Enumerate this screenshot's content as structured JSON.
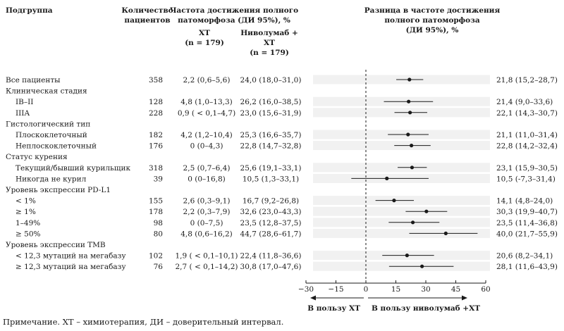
{
  "headers": {
    "subgroup": "Подгруппа",
    "patients": [
      "Количество",
      "пациентов"
    ],
    "pcr_rate": [
      "Частота достижения полного",
      "патоморфоза (ДИ 95%), %"
    ],
    "arm_chemo": [
      "ХТ",
      "(n = 179)"
    ],
    "arm_nivo": [
      "Ниволумаб +",
      "ХТ",
      "(n = 179)"
    ],
    "difference": [
      "Разница в частоте достижения",
      "полного патоморфоза",
      "(ДИ 95%), %"
    ]
  },
  "rows": [
    {
      "label": "Все пациенты",
      "indent": false,
      "n": "358",
      "chemo": "2,2 (0,6–5,6)",
      "nivo": "24,0 (18,0–31,0)",
      "diff": "21,8 (15,2–28,7)"
    },
    {
      "label": "Клиническая стадия",
      "indent": false
    },
    {
      "label": "IB–II",
      "indent": true,
      "n": "128",
      "chemo": "4,8 (1,0–13,3)",
      "nivo": "26,2 (16,0–38,5)",
      "diff": "21,4 (9,0–33,6)"
    },
    {
      "label": "IIIA",
      "indent": true,
      "n": "228",
      "chemo": "0,9 ( < 0,1–4,7)",
      "nivo": "23,0 (15,6–31,9)",
      "diff": "22,1 (14,3–30,7)"
    },
    {
      "label": "Гистологический тип",
      "indent": false
    },
    {
      "label": "Плоскоклеточный",
      "indent": true,
      "n": "182",
      "chemo": "4,2 (1,2–10,4)",
      "nivo": "25,3 (16,6–35,7)",
      "diff": "21,1 (11,0–31,4)"
    },
    {
      "label": "Неплоскоклеточный",
      "indent": true,
      "n": "176",
      "chemo": "0 (0–4,3)",
      "nivo": "22,8 (14,7–32,8)",
      "diff": "22,8 (14,2–32,4)"
    },
    {
      "label": "Статус курения",
      "indent": false
    },
    {
      "label": "Текущий/бывший курильщик",
      "indent": true,
      "n": "318",
      "chemo": "2,5 (0,7–6,4)",
      "nivo": "25,6 (19,1–33,1)",
      "diff": "23,1 (15,9–30,5)"
    },
    {
      "label": "Никогда не курил",
      "indent": true,
      "n": "39",
      "chemo": "0 (0–16,8)",
      "nivo": "10,5 (1,3–33,1)",
      "diff": "10,5 (-7,3–31,4)"
    },
    {
      "label": "Уровень экспрессии PD-L1",
      "indent": false
    },
    {
      "label": "< 1%",
      "indent": true,
      "n": "155",
      "chemo": "2,6 (0,3–9,1)",
      "nivo": "16,7 (9,2–26,8)",
      "diff": "14,1 (4,8–24,0)"
    },
    {
      "label": "≥ 1%",
      "indent": true,
      "n": "178",
      "chemo": "2,2 (0,3–7,9)",
      "nivo": "32,6 (23,0–43,3)",
      "diff": "30,3 (19,9–40,7)"
    },
    {
      "label": "1–49%",
      "indent": true,
      "n": "98",
      "chemo": "0 (0–7,5)",
      "nivo": "23,5 (12,8–37,5)",
      "diff": "23,5 (11,4–36,8)"
    },
    {
      "label": "≥ 50%",
      "indent": true,
      "n": "80",
      "chemo": "4,8 (0,6–16,2)",
      "nivo": "44,7 (28,6–61,7)",
      "diff": "40,0 (21,7–55,9)"
    },
    {
      "label": "Уровень экспрессии ТМВ",
      "indent": false
    },
    {
      "label": "< 12,3 мутаций на мегабазу",
      "indent": true,
      "n": "102",
      "chemo": "1,9 ( < 0,1–10,1)",
      "nivo": "22,4 (11,8–36,6)",
      "diff": "20,6 (8,2–34,1)"
    },
    {
      "label": "≥ 12,3 мутаций на мегабазу",
      "indent": true,
      "n": "76",
      "chemo": "2,7 ( < 0,1–14,2)",
      "nivo": "30,8 (17,0–47,6)",
      "diff": "28,1 (11,6–43,9)"
    }
  ],
  "chart_data": {
    "type": "forest",
    "xlim": [
      -30,
      60
    ],
    "xticks": [
      -30,
      -15,
      0,
      15,
      30,
      45,
      60
    ],
    "xtick_labels": [
      "−30",
      "−15",
      "0",
      "15",
      "30",
      "45",
      "60"
    ],
    "reference_line": 0,
    "direction_left": "В пользу ХТ",
    "direction_right": "В пользу ниволумаб +ХТ",
    "points": [
      {
        "subgroup": "Все пациенты",
        "estimate": 21.8,
        "low": 15.2,
        "high": 28.7
      },
      {
        "subgroup": "IB–II",
        "estimate": 21.4,
        "low": 9.0,
        "high": 33.6
      },
      {
        "subgroup": "IIIA",
        "estimate": 22.1,
        "low": 14.3,
        "high": 30.7
      },
      {
        "subgroup": "Плоскоклеточный",
        "estimate": 21.1,
        "low": 11.0,
        "high": 31.4
      },
      {
        "subgroup": "Неплоскоклеточный",
        "estimate": 22.8,
        "low": 14.2,
        "high": 32.4
      },
      {
        "subgroup": "Текущий/бывший курильщик",
        "estimate": 23.1,
        "low": 15.9,
        "high": 30.5
      },
      {
        "subgroup": "Никогда не курил",
        "estimate": 10.5,
        "low": -7.3,
        "high": 31.4
      },
      {
        "subgroup": "< 1%",
        "estimate": 14.1,
        "low": 4.8,
        "high": 24.0
      },
      {
        "subgroup": "≥ 1%",
        "estimate": 30.3,
        "low": 19.9,
        "high": 40.7
      },
      {
        "subgroup": "1–49%",
        "estimate": 23.5,
        "low": 11.4,
        "high": 36.8
      },
      {
        "subgroup": "≥ 50%",
        "estimate": 40.0,
        "low": 21.7,
        "high": 55.9
      },
      {
        "subgroup": "< 12,3 мутаций на мегабазу",
        "estimate": 20.6,
        "low": 8.2,
        "high": 34.1
      },
      {
        "subgroup": "≥ 12,3 мутаций на мегабазу",
        "estimate": 28.1,
        "low": 11.6,
        "high": 43.9
      }
    ]
  },
  "note": "Примечание. ХТ – химиотерапия, ДИ – доверительный интервал.",
  "colors": {
    "band": "#f1f1f1",
    "ink": "#1a1a1a"
  }
}
